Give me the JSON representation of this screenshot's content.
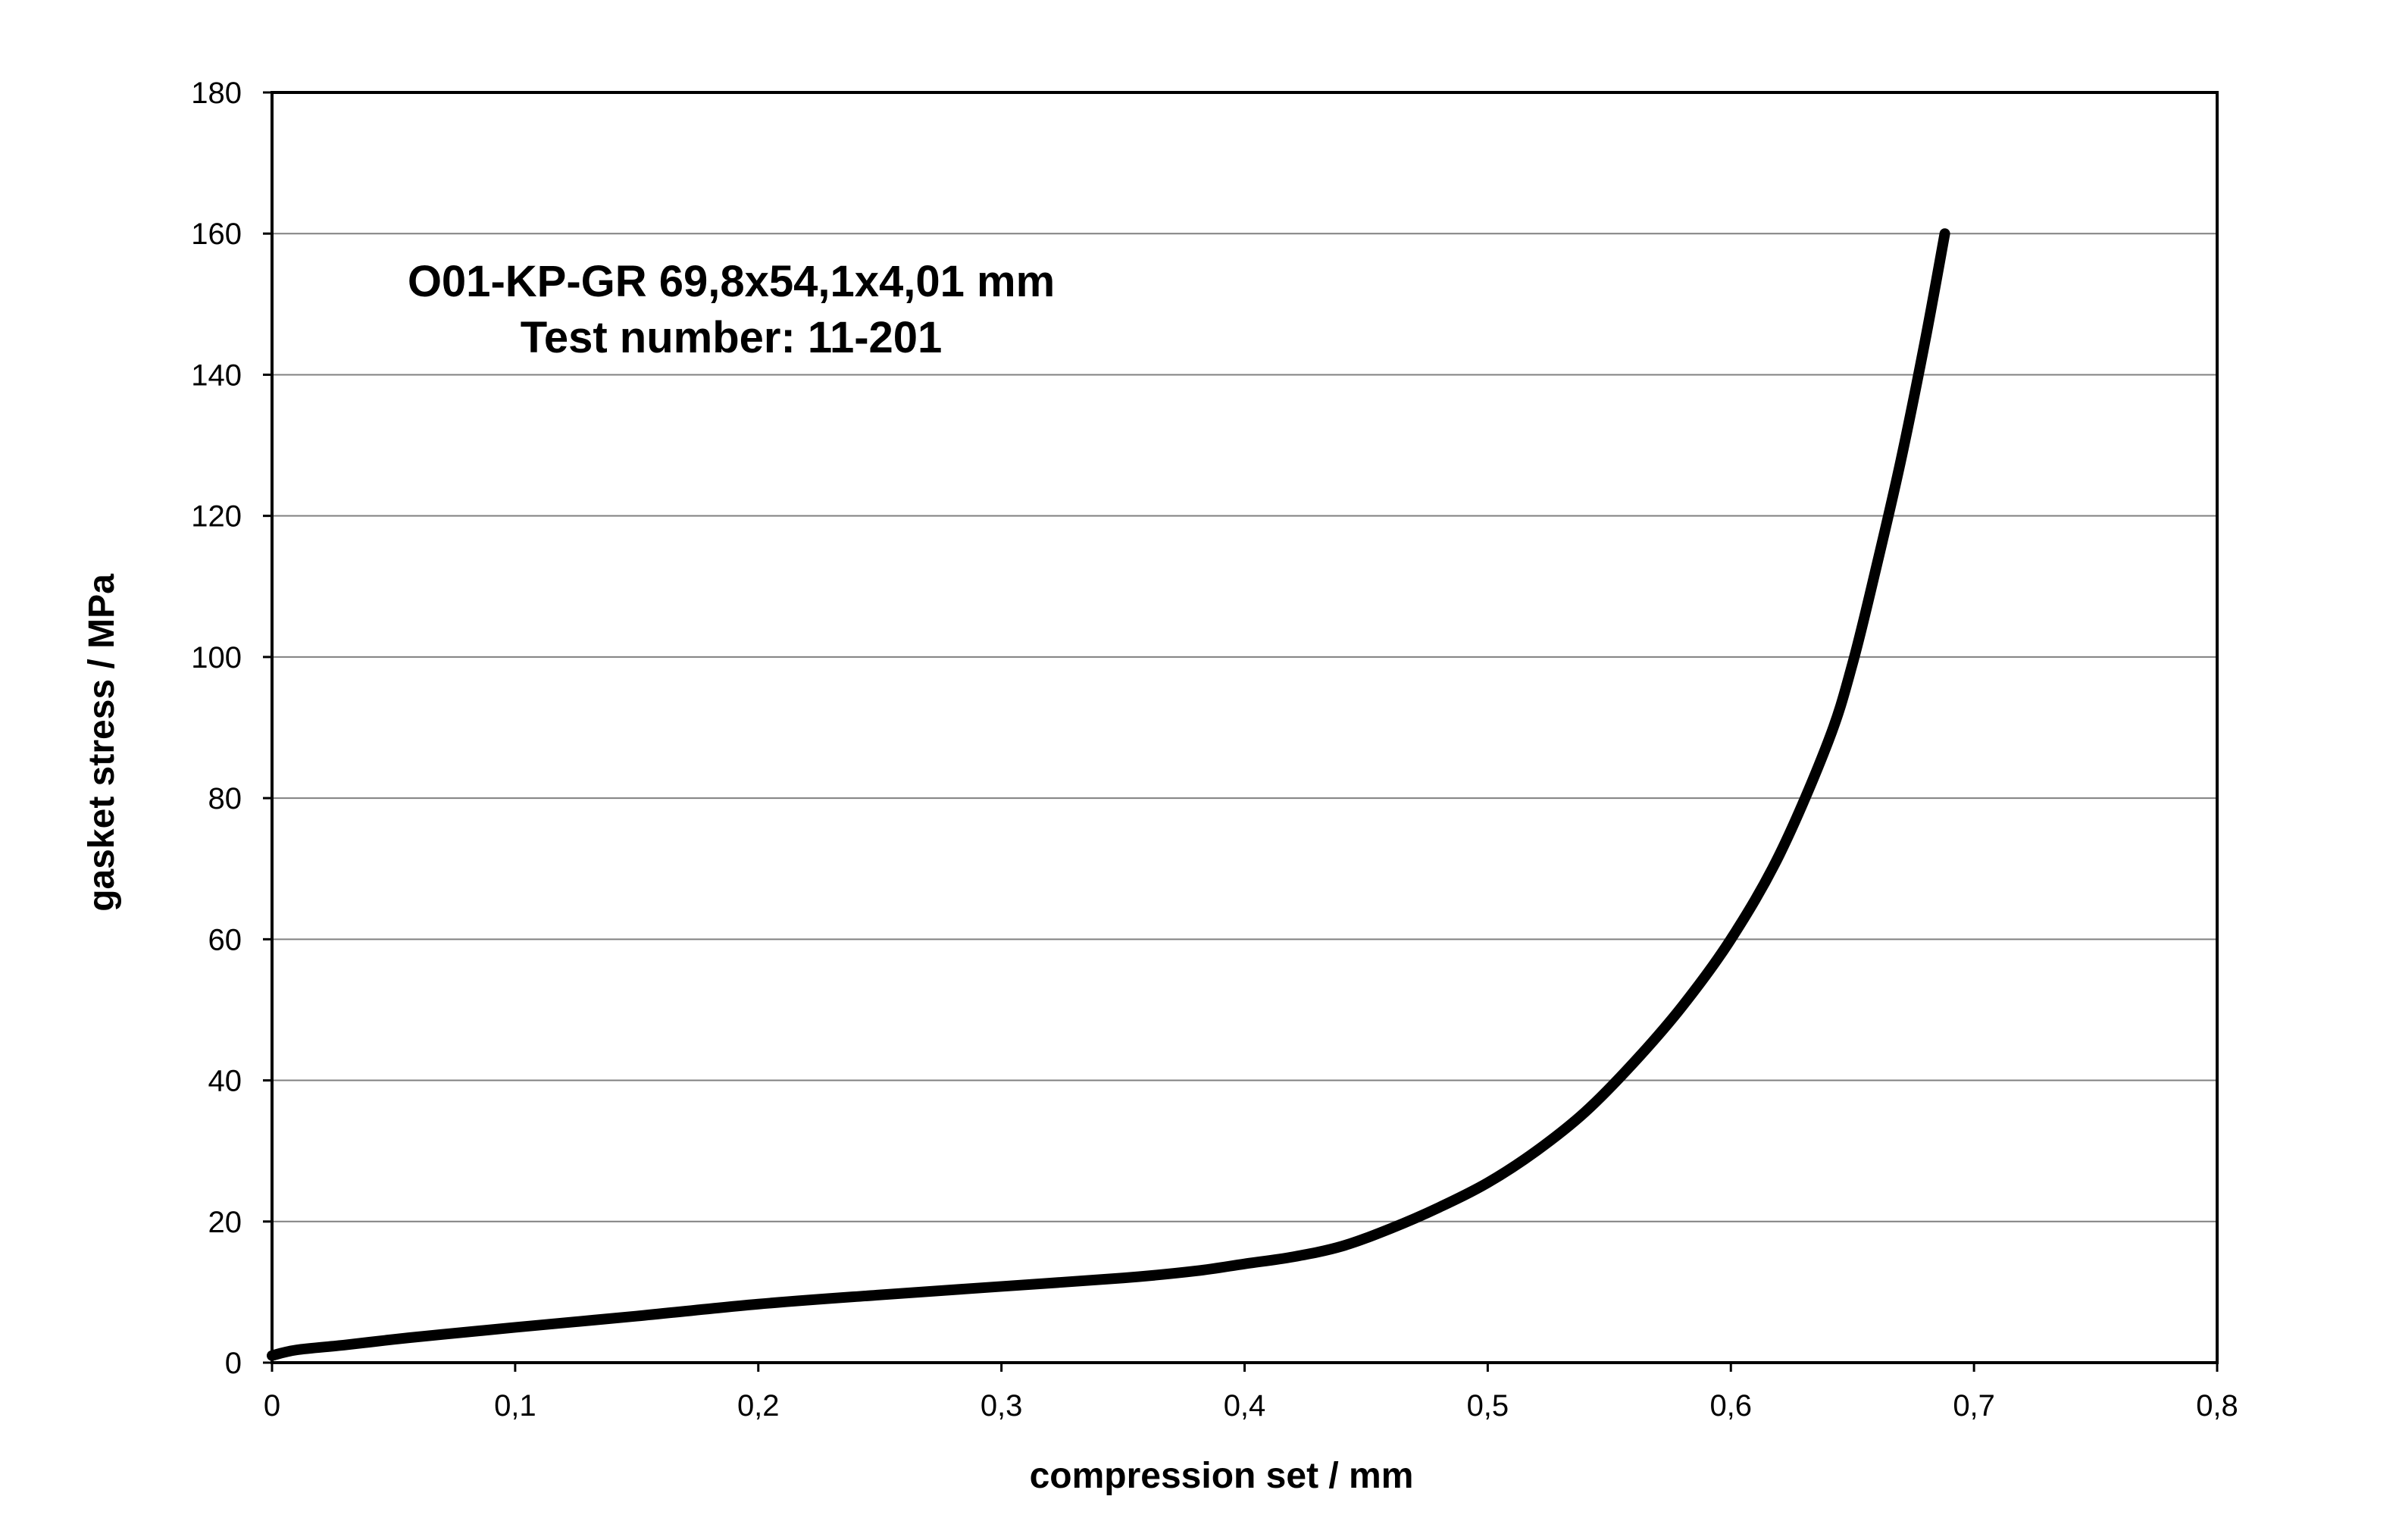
{
  "chart_data": {
    "type": "line",
    "annotations": [
      "O01-KP-GR 69,8x54,1x4,01 mm",
      "Test number: 11-201"
    ],
    "xlabel": "compression set / mm",
    "ylabel": "gasket stress / MPa",
    "xlim": [
      0,
      0.8
    ],
    "ylim": [
      0,
      180
    ],
    "x_ticks": [
      0,
      0.1,
      0.2,
      0.3,
      0.4,
      0.5,
      0.6,
      0.7,
      0.8
    ],
    "x_tick_labels": [
      "0",
      "0,1",
      "0,2",
      "0,3",
      "0,4",
      "0,5",
      "0,6",
      "0,7",
      "0,8"
    ],
    "y_ticks": [
      0,
      20,
      40,
      60,
      80,
      100,
      120,
      140,
      160,
      180
    ],
    "y_tick_labels": [
      "0",
      "20",
      "40",
      "60",
      "80",
      "100",
      "120",
      "140",
      "160",
      "180"
    ],
    "grid": "horizontal",
    "series": [
      {
        "color": "#000000",
        "x": [
          0,
          0.01,
          0.03,
          0.05,
          0.07,
          0.1,
          0.15,
          0.2,
          0.25,
          0.3,
          0.35,
          0.38,
          0.4,
          0.42,
          0.44,
          0.46,
          0.48,
          0.5,
          0.52,
          0.54,
          0.56,
          0.58,
          0.6,
          0.62,
          0.64,
          0.65,
          0.66,
          0.67,
          0.68,
          0.688
        ],
        "y": [
          1,
          1.8,
          2.5,
          3.3,
          4,
          5,
          6.6,
          8.3,
          9.6,
          10.8,
          12,
          13,
          14,
          15,
          16.5,
          19,
          22,
          25.5,
          30,
          35.5,
          42.5,
          50.5,
          60,
          72,
          88,
          99,
          113,
          128,
          145,
          160
        ]
      }
    ]
  }
}
